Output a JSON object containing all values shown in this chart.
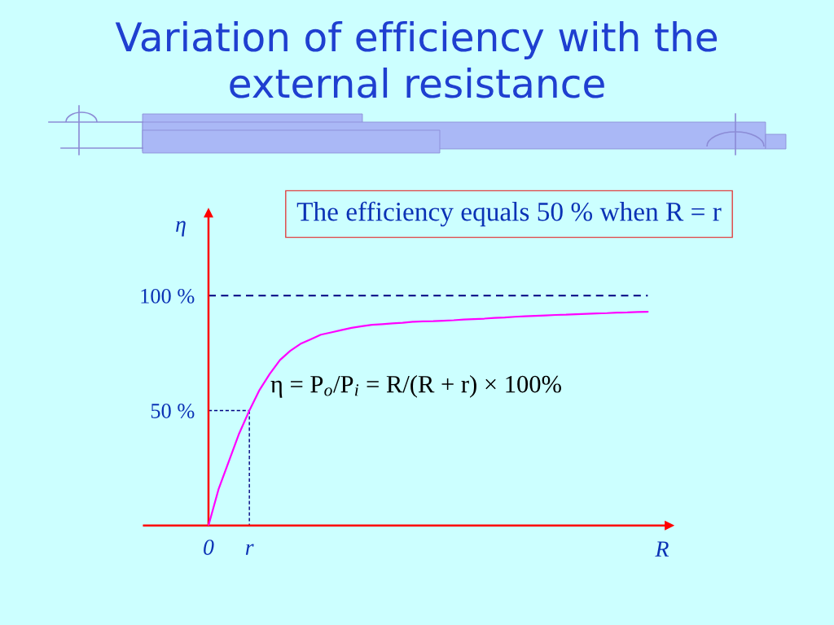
{
  "chart_data": {
    "type": "line",
    "title": "Variation of efficiency with the\nexternal resistance",
    "xlabel": "R",
    "ylabel": "η",
    "categories": [
      "0",
      null,
      null,
      null,
      "r",
      null,
      null,
      null,
      null,
      null,
      null,
      null,
      null,
      null,
      null,
      null,
      null,
      null,
      null,
      null,
      null,
      null,
      null,
      null,
      null,
      null,
      null,
      null,
      null,
      null,
      null,
      null,
      null,
      null,
      null,
      null,
      null,
      null,
      null,
      null,
      null,
      null,
      null,
      null
    ],
    "ylim": [
      0,
      136
    ],
    "yticks": [
      {
        "value": 50,
        "label": "50 %"
      },
      {
        "value": 100,
        "label": "100 %"
      }
    ],
    "series": [
      {
        "color": "#ff00ff",
        "values": [
          0,
          16,
          28,
          40,
          50,
          59,
          66,
          72,
          76,
          79,
          81,
          83,
          84,
          85,
          86,
          86.7,
          87.3,
          87.6,
          87.9,
          88.2,
          88.6,
          88.8,
          88.9,
          89.1,
          89.3,
          89.6,
          89.8,
          90,
          90.3,
          90.5,
          90.8,
          91,
          91.2,
          91.4,
          91.6,
          91.7,
          91.9,
          92.1,
          92.3,
          92.4,
          92.6,
          92.7,
          92.9,
          93
        ]
      },
      {
        "color": "#000080",
        "line_style": "dashed",
        "values": [
          50,
          50,
          50,
          50,
          50,
          null,
          null,
          null,
          null,
          null,
          null,
          null,
          null,
          null,
          null,
          null,
          null,
          null,
          null,
          null,
          null,
          null,
          null,
          null,
          null,
          null,
          null,
          null,
          null,
          null,
          null,
          null,
          null,
          null,
          null,
          null,
          null,
          null,
          null,
          null,
          null,
          null,
          null,
          null
        ]
      },
      {
        "color": "#000080",
        "line_style": "dashed",
        "x": [
          "r",
          "r"
        ],
        "values": [
          50,
          0
        ]
      }
    ],
    "ref_lines": [
      {
        "axis": "y",
        "value": 100,
        "color": "#000080",
        "line_style": "dashed"
      }
    ],
    "annotations": [
      "The efficiency equals 50 % when R = r",
      "η = P$_{o}$/P$_{i}$ = R/(R + r) × 100%"
    ]
  }
}
